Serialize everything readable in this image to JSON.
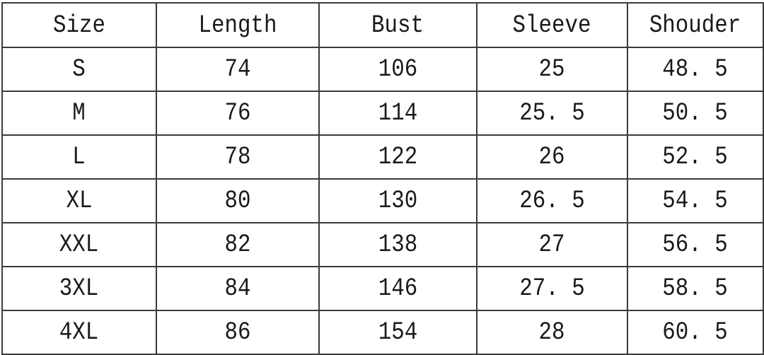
{
  "table": {
    "headers": [
      "Size",
      "Length",
      "Bust",
      "Sleeve",
      "Shouder"
    ],
    "rows": [
      [
        "S",
        "74",
        "106",
        "25",
        "48. 5"
      ],
      [
        "M",
        "76",
        "114",
        "25. 5",
        "50. 5"
      ],
      [
        "L",
        "78",
        "122",
        "26",
        "52. 5"
      ],
      [
        "XL",
        "80",
        "130",
        "26. 5",
        "54. 5"
      ],
      [
        "XXL",
        "82",
        "138",
        "27",
        "56. 5"
      ],
      [
        "3XL",
        "84",
        "146",
        "27. 5",
        "58. 5"
      ],
      [
        "4XL",
        "86",
        "154",
        "28",
        "60. 5"
      ]
    ]
  }
}
